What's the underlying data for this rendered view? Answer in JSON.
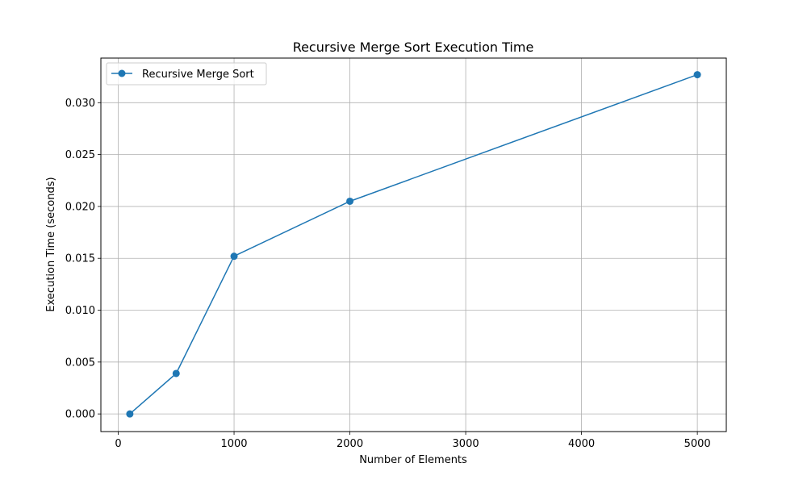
{
  "chart_data": {
    "type": "line",
    "title": "Recursive Merge Sort Execution Time",
    "xlabel": "Number of Elements",
    "ylabel": "Execution Time (seconds)",
    "xlim": [
      -150,
      5250
    ],
    "ylim": [
      -0.0017,
      0.0343
    ],
    "xticks": [
      0,
      1000,
      2000,
      3000,
      4000,
      5000
    ],
    "yticks": [
      0.0,
      0.005,
      0.01,
      0.015,
      0.02,
      0.025,
      0.03
    ],
    "xtick_labels": [
      "0",
      "1000",
      "2000",
      "3000",
      "4000",
      "5000"
    ],
    "ytick_labels": [
      "0.000",
      "0.005",
      "0.010",
      "0.015",
      "0.020",
      "0.025",
      "0.030"
    ],
    "grid": true,
    "legend_position": "top-left",
    "series": [
      {
        "name": "Recursive Merge Sort",
        "color": "#1f77b4",
        "marker": "circle",
        "x": [
          100,
          500,
          1000,
          2000,
          5000
        ],
        "y": [
          0.0,
          0.0039,
          0.0152,
          0.0205,
          0.0327
        ]
      }
    ]
  }
}
